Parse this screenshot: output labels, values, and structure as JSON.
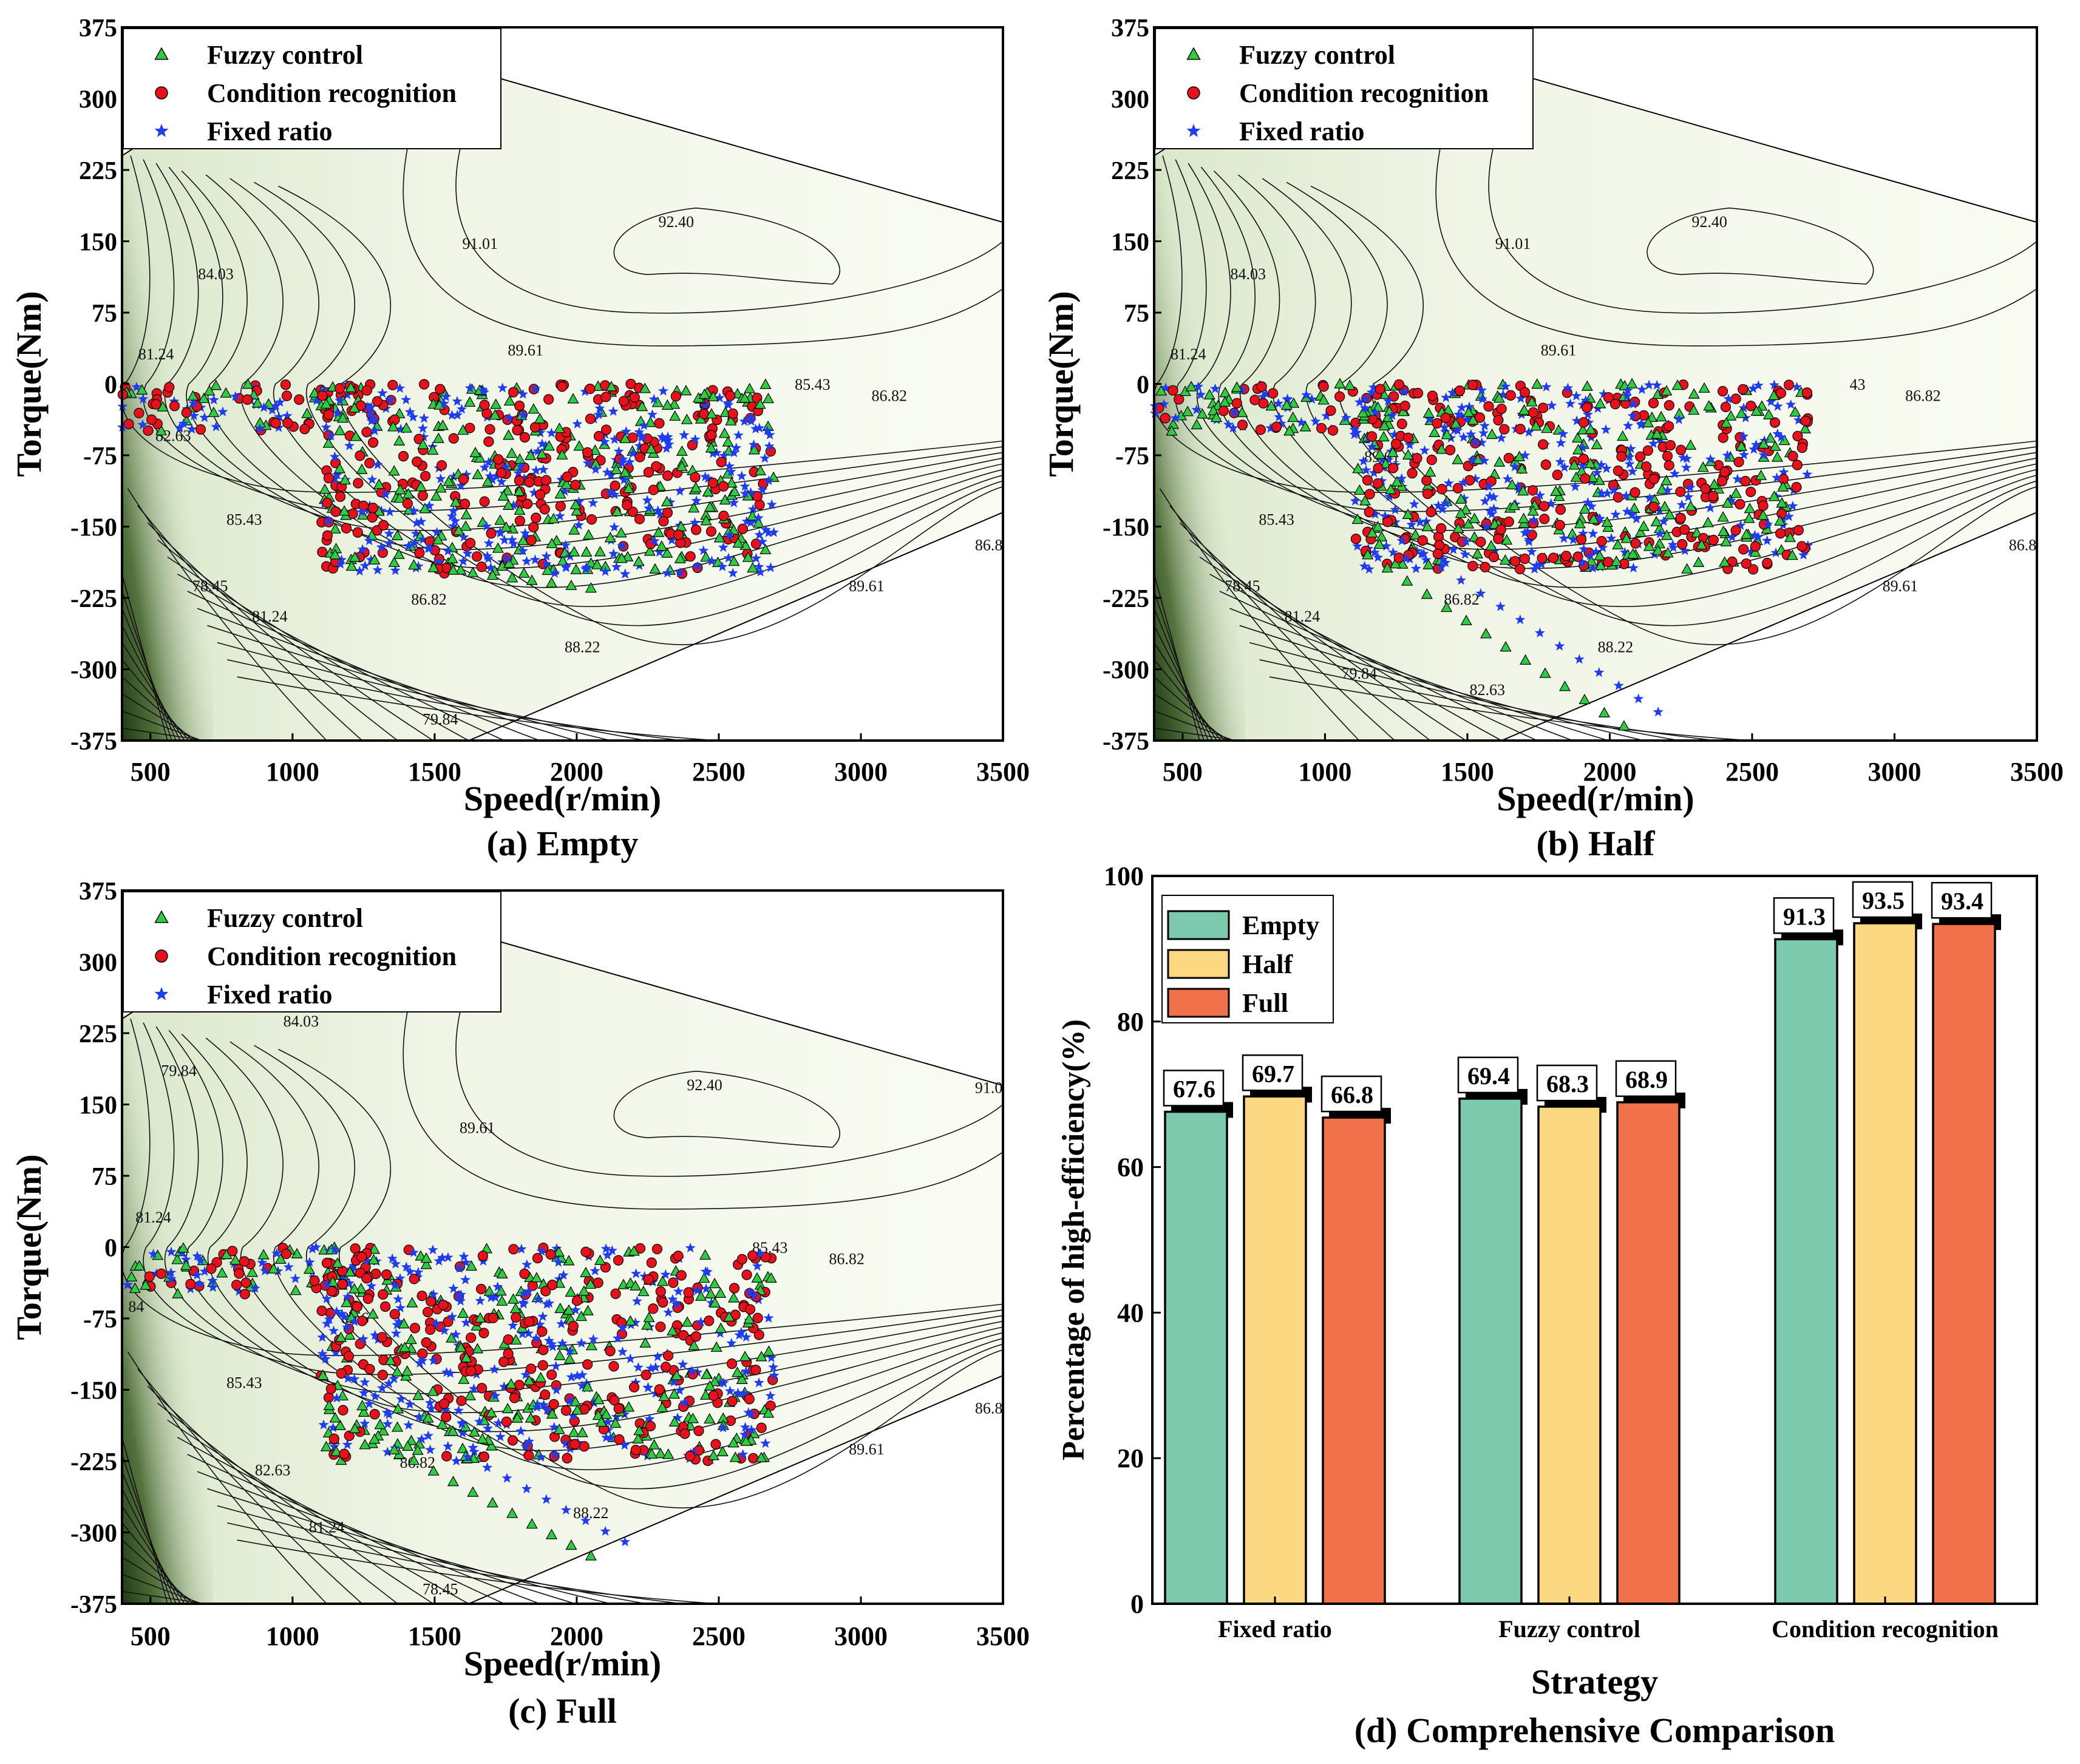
{
  "chart_data": [
    {
      "id": "a",
      "type": "scatter",
      "caption": "(a) Empty",
      "xlabel": "Speed(r/min)",
      "ylabel": "Torque(Nm)",
      "xlim": [
        400,
        3500
      ],
      "ylim": [
        -375,
        375
      ],
      "xticks": [
        "500",
        "1000",
        "1500",
        "2000",
        "2500",
        "3000",
        "3500"
      ],
      "yticks": [
        "375",
        "300",
        "225",
        "150",
        "75",
        "0",
        "-75",
        "-150",
        "-225",
        "-300",
        "-375"
      ],
      "legend_position": "top-left",
      "series": [
        {
          "name": "Fuzzy control",
          "marker": "triangle",
          "color": "#2ecc40"
        },
        {
          "name": "Condition recognition",
          "marker": "circle",
          "color": "#e8101a"
        },
        {
          "name": "Fixed ratio",
          "marker": "star",
          "color": "#1f3cf0"
        }
      ],
      "point_cloud": {
        "speed_range": [
          400,
          2700
        ],
        "torque_range": [
          -200,
          0
        ],
        "tail_min_torque": -215
      },
      "contour_labels": [
        {
          "text": "92.40",
          "speed": 2350,
          "torque": 165
        },
        {
          "text": "91.01",
          "speed": 1660,
          "torque": 142
        },
        {
          "text": "84.03",
          "speed": 730,
          "torque": 110
        },
        {
          "text": "89.61",
          "speed": 1820,
          "torque": 30
        },
        {
          "text": "81.24",
          "speed": 520,
          "torque": 26
        },
        {
          "text": "85.43",
          "speed": 2830,
          "torque": -6
        },
        {
          "text": "86.82",
          "speed": 3100,
          "torque": -18
        },
        {
          "text": "82.63",
          "speed": 580,
          "torque": -60
        },
        {
          "text": "85.43",
          "speed": 830,
          "torque": -148
        },
        {
          "text": "78.45",
          "speed": 710,
          "torque": -218
        },
        {
          "text": "81.24",
          "speed": 920,
          "torque": -250
        },
        {
          "text": "86.82",
          "speed": 1480,
          "torque": -232
        },
        {
          "text": "89.61",
          "speed": 3020,
          "torque": -218
        },
        {
          "text": "88.22",
          "speed": 2020,
          "torque": -282
        },
        {
          "text": "79.84",
          "speed": 1520,
          "torque": -358
        },
        {
          "text": "86.8",
          "speed": 3450,
          "torque": -175
        }
      ]
    },
    {
      "id": "b",
      "type": "scatter",
      "caption": "(b) Half",
      "xlabel": "Speed(r/min)",
      "ylabel": "Torque(Nm)",
      "xlim": [
        400,
        3500
      ],
      "ylim": [
        -375,
        375
      ],
      "xticks": [
        "500",
        "1000",
        "1500",
        "2000",
        "2500",
        "3000",
        "3500"
      ],
      "yticks": [
        "375",
        "300",
        "225",
        "150",
        "75",
        "0",
        "-75",
        "-150",
        "-225",
        "-300",
        "-375"
      ],
      "legend_position": "top-left",
      "series": [
        {
          "name": "Fuzzy control",
          "marker": "triangle",
          "color": "#2ecc40"
        },
        {
          "name": "Condition recognition",
          "marker": "circle",
          "color": "#e8101a"
        },
        {
          "name": "Fixed ratio",
          "marker": "star",
          "color": "#1f3cf0"
        }
      ],
      "point_cloud": {
        "speed_range": [
          400,
          2800
        ],
        "torque_range": [
          -195,
          0
        ],
        "tail_min_torque": -360
      },
      "contour_labels": [
        {
          "text": "92.40",
          "speed": 2350,
          "torque": 165
        },
        {
          "text": "91.01",
          "speed": 1660,
          "torque": 142
        },
        {
          "text": "84.03",
          "speed": 730,
          "torque": 110
        },
        {
          "text": "89.61",
          "speed": 1820,
          "torque": 30
        },
        {
          "text": "81.24",
          "speed": 520,
          "torque": 26
        },
        {
          "text": "43",
          "speed": 2870,
          "torque": -6
        },
        {
          "text": "86.82",
          "speed": 3100,
          "torque": -18
        },
        {
          "text": "89.61",
          "speed": 1200,
          "torque": -82
        },
        {
          "text": "85.43",
          "speed": 830,
          "torque": -148
        },
        {
          "text": "78.45",
          "speed": 710,
          "torque": -218
        },
        {
          "text": "81.24",
          "speed": 920,
          "torque": -250
        },
        {
          "text": "86.82",
          "speed": 1480,
          "torque": -232
        },
        {
          "text": "89.61",
          "speed": 3020,
          "torque": -218
        },
        {
          "text": "88.22",
          "speed": 2020,
          "torque": -282
        },
        {
          "text": "79.84",
          "speed": 1120,
          "torque": -310
        },
        {
          "text": "82.63",
          "speed": 1570,
          "torque": -327
        },
        {
          "text": "86.8",
          "speed": 3450,
          "torque": -175
        }
      ]
    },
    {
      "id": "c",
      "type": "scatter",
      "caption": "(c) Full",
      "xlabel": "Speed(r/min)",
      "ylabel": "Torque(Nm)",
      "xlim": [
        400,
        3500
      ],
      "ylim": [
        -375,
        375
      ],
      "xticks": [
        "500",
        "1000",
        "1500",
        "2000",
        "2500",
        "3000",
        "3500"
      ],
      "yticks": [
        "375",
        "300",
        "225",
        "150",
        "75",
        "0",
        "-75",
        "-150",
        "-225",
        "-300",
        "-375"
      ],
      "legend_position": "top-left",
      "series": [
        {
          "name": "Fuzzy control",
          "marker": "triangle",
          "color": "#2ecc40"
        },
        {
          "name": "Condition recognition",
          "marker": "circle",
          "color": "#e8101a"
        },
        {
          "name": "Fixed ratio",
          "marker": "star",
          "color": "#1f3cf0"
        }
      ],
      "point_cloud": {
        "speed_range": [
          400,
          3500
        ],
        "torque_range": [
          -225,
          0
        ],
        "tail_min_torque": -325
      },
      "contour_labels": [
        {
          "text": "92.40",
          "speed": 2450,
          "torque": 165
        },
        {
          "text": "91.0",
          "speed": 3450,
          "torque": 162
        },
        {
          "text": "89.61",
          "speed": 1650,
          "torque": 120
        },
        {
          "text": "84.03",
          "speed": 1030,
          "torque": 232
        },
        {
          "text": "79.84",
          "speed": 600,
          "torque": 180
        },
        {
          "text": "81.24",
          "speed": 510,
          "torque": 26
        },
        {
          "text": "85.43",
          "speed": 2680,
          "torque": -6
        },
        {
          "text": "86.82",
          "speed": 2950,
          "torque": -18
        },
        {
          "text": "84",
          "speed": 450,
          "torque": -68
        },
        {
          "text": "89.6",
          "speed": 1220,
          "torque": -80
        },
        {
          "text": "85.43",
          "speed": 830,
          "torque": -148
        },
        {
          "text": "82.63",
          "speed": 930,
          "torque": -240
        },
        {
          "text": "86.82",
          "speed": 1440,
          "torque": -232
        },
        {
          "text": "81.24",
          "speed": 1120,
          "torque": -300
        },
        {
          "text": "89.61",
          "speed": 3020,
          "torque": -218
        },
        {
          "text": "88.22",
          "speed": 2050,
          "torque": -285
        },
        {
          "text": "78.45",
          "speed": 1520,
          "torque": -365
        },
        {
          "text": "86.8",
          "speed": 3450,
          "torque": -175
        }
      ]
    },
    {
      "id": "d",
      "type": "bar",
      "caption": "(d) Comprehensive Comparison",
      "xlabel": "Strategy",
      "ylabel": "Percentage of high-efficiency(%)",
      "ylim": [
        0,
        100
      ],
      "yticks": [
        "0",
        "20",
        "40",
        "60",
        "80",
        "100"
      ],
      "categories": [
        "Fixed ratio",
        "Fuzzy control",
        "Condition recognition"
      ],
      "legend_position": "top-left",
      "series": [
        {
          "name": "Empty",
          "color": "#7dc9ad",
          "values": [
            67.6,
            69.4,
            91.3
          ],
          "labels": [
            "67.6",
            "69.4",
            "91.3"
          ]
        },
        {
          "name": "Half",
          "color": "#fdd883",
          "values": [
            69.7,
            68.3,
            93.5
          ],
          "labels": [
            "69.7",
            "68.3",
            "93.5"
          ]
        },
        {
          "name": "Full",
          "color": "#f1724a",
          "values": [
            66.8,
            68.9,
            93.4
          ],
          "labels": [
            "66.8",
            "68.9",
            "93.4"
          ]
        }
      ]
    }
  ]
}
